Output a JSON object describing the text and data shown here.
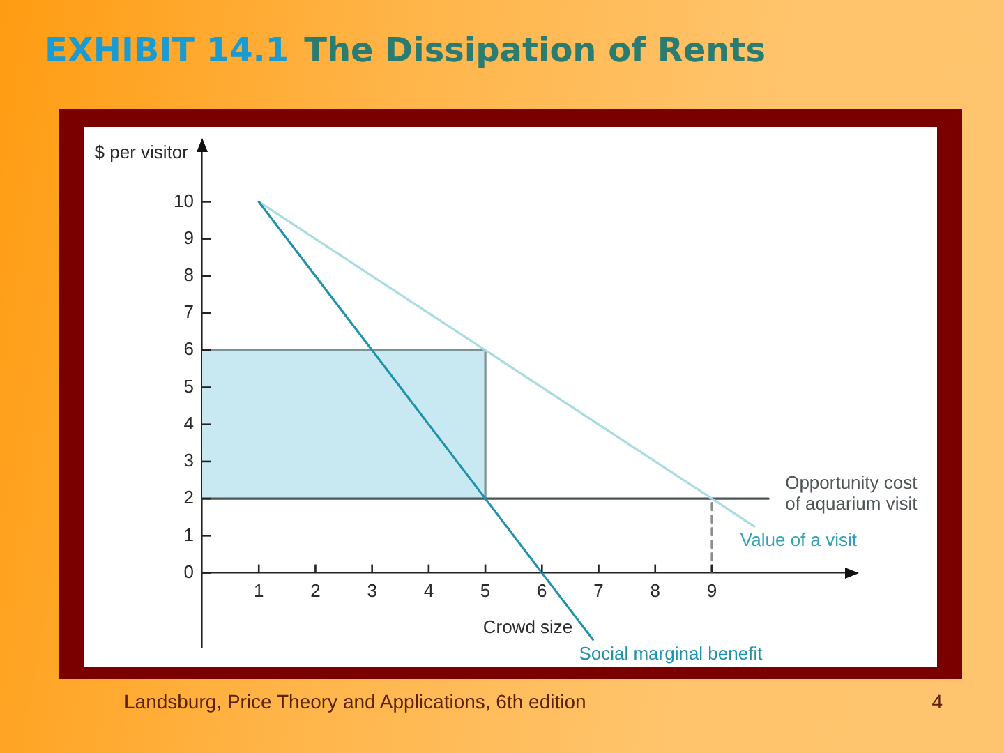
{
  "chart_data": {
    "type": "line",
    "title": "EXHIBIT 14.1  The Dissipation of Rents",
    "xlabel": "Crowd size",
    "ylabel": "$ per visitor",
    "annotations": [
      "Landsburg, Price Theory and Applications, 6th edition",
      "4"
    ],
    "xlim": [
      0,
      11.5
    ],
    "ylim": [
      -2,
      11.5
    ],
    "xticks": [
      1,
      2,
      3,
      4,
      5,
      6,
      7,
      8,
      9
    ],
    "yticks": [
      0,
      1,
      2,
      3,
      4,
      5,
      6,
      7,
      8,
      9,
      10
    ],
    "grid": false,
    "legend": false,
    "marker": "none",
    "series": [
      {
        "x": [
          0,
          5,
          5
        ],
        "values": [
          6,
          6,
          2
        ],
        "lower": [
          2,
          2,
          2
        ],
        "upper": [
          6,
          6,
          2
        ],
        "color": "#7a939a"
      },
      {
        "name": "Opportunity cost of aquarium visit",
        "x": [
          0,
          10
        ],
        "values": [
          2,
          2
        ],
        "color": "#4d5556"
      },
      {
        "x": [
          9,
          9
        ],
        "values": [
          0,
          2
        ],
        "color": "#8c8c8c",
        "line_style": "dashed"
      },
      {
        "name": "Value of a visit",
        "x": [
          1,
          9.75
        ],
        "values": [
          10,
          1.25
        ],
        "color": "#a9dbe4"
      },
      {
        "name": "Social marginal benefit",
        "x": [
          1,
          6.9
        ],
        "values": [
          10,
          -1.8
        ],
        "color": "#1e93ab"
      }
    ]
  }
}
